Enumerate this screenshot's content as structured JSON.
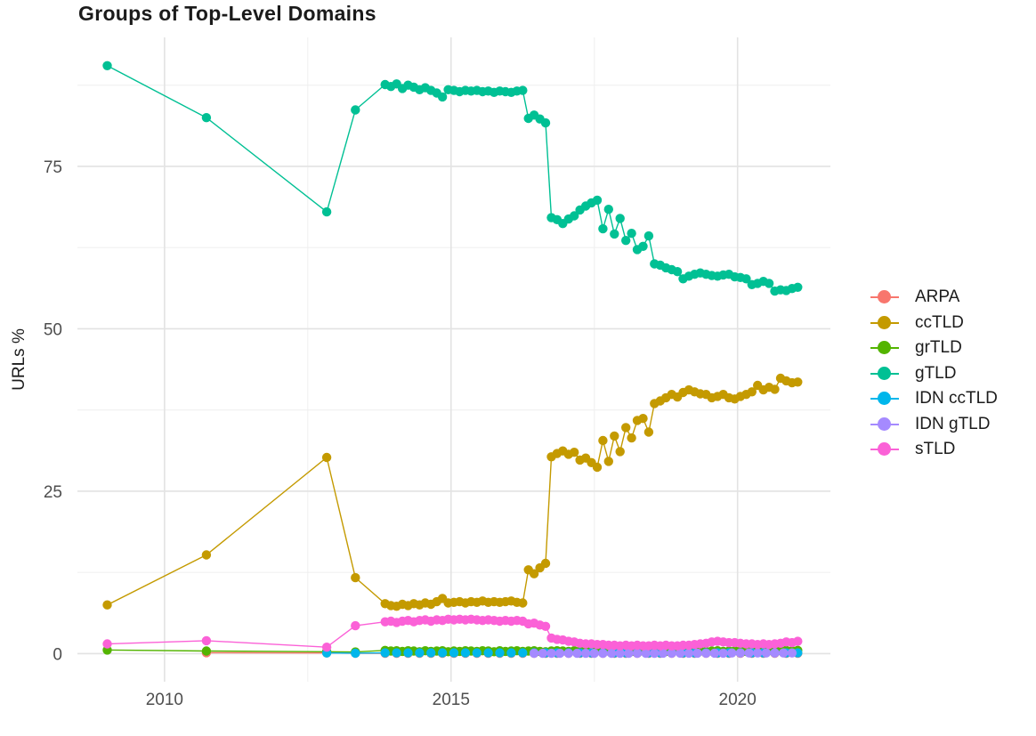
{
  "title": "Groups of Top-Level Domains",
  "y_axis_title": "URLs %",
  "colors": {
    "background": "#ffffff",
    "major_grid": "#e3e3e3",
    "minor_grid": "#f0f0f0",
    "tick_text": "#4e4e4e",
    "title_text": "#1b1b1b"
  },
  "legend": {
    "items": [
      {
        "label": "ARPA",
        "color": "#F8766D"
      },
      {
        "label": "ccTLD",
        "color": "#C49A00"
      },
      {
        "label": "grTLD",
        "color": "#53B400"
      },
      {
        "label": "gTLD",
        "color": "#00C094"
      },
      {
        "label": "IDN ccTLD",
        "color": "#00B6EB"
      },
      {
        "label": "IDN gTLD",
        "color": "#A58AFF"
      },
      {
        "label": "sTLD",
        "color": "#FB61D7"
      }
    ]
  },
  "chart_data": {
    "type": "line",
    "title": "Groups of Top-Level Domains",
    "xlabel": "",
    "ylabel": "URLs %",
    "grid": true,
    "legend_position": "right",
    "x_domain": [
      2008.48,
      2021.62
    ],
    "y_domain": [
      -4.32,
      94.86
    ],
    "x_ticks": [
      {
        "value": 2010,
        "label": "2010"
      },
      {
        "value": 2015,
        "label": "2015"
      },
      {
        "value": 2020,
        "label": "2020"
      }
    ],
    "x_minor": [
      2012.5,
      2017.5
    ],
    "y_ticks": [
      {
        "value": 0,
        "label": "0"
      },
      {
        "value": 25,
        "label": "25"
      },
      {
        "value": 50,
        "label": "50"
      },
      {
        "value": 75,
        "label": "75"
      }
    ],
    "y_minor": [
      12.5,
      37.5,
      62.5,
      87.5
    ],
    "series": [
      {
        "name": "ARPA",
        "color": "#F8766D",
        "early": [
          [
            2010.73,
            0.15
          ],
          [
            2012.83,
            0.1
          ],
          [
            2013.33,
            0.06
          ]
        ],
        "dense_start": 2013.85,
        "dense_step": 0.2,
        "dense_values": [
          0.05,
          0.05,
          0.05,
          0.05,
          0.05,
          0.05,
          0.05,
          0.05,
          0.05,
          0.05,
          0.05,
          0.05,
          0.05,
          0.05,
          0.05,
          0.05,
          0.05,
          0.05,
          0.05,
          0.05,
          0.05,
          0.05,
          0.05,
          0.05,
          0.05,
          0.05,
          0.05,
          0.05,
          0.05,
          0.05,
          0.05,
          0.05,
          0.05,
          0.05,
          0.05,
          0.05,
          0.05
        ]
      },
      {
        "name": "ccTLD",
        "color": "#C49A00",
        "early": [
          [
            2009.0,
            7.5
          ],
          [
            2010.73,
            15.2
          ],
          [
            2012.83,
            30.2
          ],
          [
            2013.33,
            11.7
          ]
        ],
        "dense_start": 2013.85,
        "dense_step": 0.1,
        "dense_values": [
          7.7,
          7.4,
          7.3,
          7.6,
          7.4,
          7.7,
          7.5,
          7.8,
          7.6,
          8.0,
          8.5,
          7.8,
          7.9,
          8.0,
          7.8,
          8.0,
          7.9,
          8.1,
          7.9,
          8.0,
          7.9,
          8.0,
          8.1,
          7.9,
          7.8,
          12.9,
          12.3,
          13.2,
          13.9,
          30.3,
          30.8,
          31.2,
          30.7,
          31.0,
          29.8,
          30.1,
          29.4,
          28.7,
          32.8,
          29.6,
          33.5,
          31.1,
          34.8,
          33.2,
          35.9,
          36.2,
          34.1,
          38.5,
          38.9,
          39.4,
          39.9,
          39.5,
          40.2,
          40.6,
          40.3,
          40.0,
          39.9,
          39.4,
          39.6,
          39.9,
          39.4,
          39.2,
          39.6,
          39.9,
          40.3,
          41.3,
          40.6,
          41.0,
          40.7,
          42.4,
          42.0,
          41.7,
          41.8
        ]
      },
      {
        "name": "grTLD",
        "color": "#53B400",
        "early": [
          [
            2009.0,
            0.55
          ],
          [
            2010.73,
            0.4
          ],
          [
            2012.83,
            0.3
          ],
          [
            2013.33,
            0.25
          ]
        ],
        "dense_start": 2013.85,
        "dense_step": 0.1,
        "dense_values": [
          0.5,
          0.4,
          0.45,
          0.35,
          0.45,
          0.4,
          0.3,
          0.45,
          0.35,
          0.4,
          0.45,
          0.3,
          0.4,
          0.35,
          0.45,
          0.4,
          0.35,
          0.45,
          0.4,
          0.3,
          0.45,
          0.35,
          0.4,
          0.45,
          0.35,
          0.4,
          0.45,
          0.35,
          0.3,
          0.4,
          0.45,
          0.4,
          0.35,
          0.45,
          0.4,
          0.35,
          0.4,
          0.45,
          0.35,
          0.4,
          0.3,
          0.45,
          0.4,
          0.35,
          0.45,
          0.4,
          0.35,
          0.4,
          0.45,
          0.35,
          0.4,
          0.45,
          0.4,
          0.35,
          0.45,
          0.4,
          0.35,
          0.4,
          0.45,
          0.35,
          0.4,
          0.45,
          0.4,
          0.35,
          0.45,
          0.4,
          0.5,
          0.45,
          0.4,
          0.45,
          0.5,
          0.45,
          0.5
        ]
      },
      {
        "name": "gTLD",
        "color": "#00C094",
        "early": [
          [
            2009.0,
            90.5
          ],
          [
            2010.73,
            82.5
          ],
          [
            2012.83,
            68.0
          ],
          [
            2013.33,
            83.7
          ]
        ],
        "dense_start": 2013.85,
        "dense_step": 0.1,
        "dense_values": [
          87.6,
          87.3,
          87.7,
          87.0,
          87.5,
          87.2,
          86.8,
          87.1,
          86.7,
          86.3,
          85.7,
          86.8,
          86.7,
          86.5,
          86.7,
          86.6,
          86.7,
          86.5,
          86.6,
          86.4,
          86.6,
          86.5,
          86.4,
          86.6,
          86.7,
          82.4,
          82.9,
          82.3,
          81.7,
          67.1,
          66.8,
          66.2,
          66.9,
          67.4,
          68.3,
          68.9,
          69.4,
          69.8,
          65.4,
          68.4,
          64.6,
          67.0,
          63.6,
          64.7,
          62.2,
          62.7,
          64.3,
          60.0,
          59.8,
          59.4,
          59.1,
          58.8,
          57.7,
          58.1,
          58.4,
          58.6,
          58.4,
          58.2,
          58.1,
          58.3,
          58.4,
          58.0,
          57.9,
          57.7,
          56.8,
          57.0,
          57.3,
          57.0,
          55.8,
          56.0,
          55.9,
          56.2,
          56.4
        ]
      },
      {
        "name": "IDN ccTLD",
        "color": "#00B6EB",
        "early": [
          [
            2012.83,
            0.1
          ],
          [
            2013.33,
            0.08
          ]
        ],
        "dense_start": 2013.85,
        "dense_step": 0.2,
        "dense_values": [
          0.12,
          0.12,
          0.12,
          0.12,
          0.12,
          0.12,
          0.12,
          0.12,
          0.12,
          0.12,
          0.12,
          0.12,
          0.12,
          0.12,
          0.12,
          0.12,
          0.12,
          0.12,
          0.12,
          0.12,
          0.12,
          0.12,
          0.12,
          0.12,
          0.12,
          0.12,
          0.12,
          0.12,
          0.12,
          0.12,
          0.12,
          0.12,
          0.12,
          0.12,
          0.12,
          0.12,
          0.12
        ]
      },
      {
        "name": "IDN gTLD",
        "color": "#A58AFF",
        "early": [],
        "dense_start": 2016.45,
        "dense_step": 0.15,
        "dense_values": [
          0.05,
          0.05,
          0.05,
          0.05,
          0.05,
          0.05,
          0.05,
          0.05,
          0.05,
          0.05,
          0.05,
          0.05,
          0.05,
          0.05,
          0.05,
          0.08,
          0.08,
          0.08,
          0.08,
          0.08,
          0.08,
          0.08,
          0.08,
          0.1,
          0.1,
          0.1,
          0.1,
          0.1,
          0.1,
          0.1,
          0.1
        ]
      },
      {
        "name": "sTLD",
        "color": "#FB61D7",
        "early": [
          [
            2009.0,
            1.5
          ],
          [
            2010.73,
            2.0
          ],
          [
            2012.83,
            1.0
          ],
          [
            2013.33,
            4.3
          ]
        ],
        "dense_start": 2013.85,
        "dense_step": 0.1,
        "dense_values": [
          4.9,
          5.0,
          4.8,
          5.0,
          5.1,
          4.9,
          5.1,
          5.2,
          5.0,
          5.2,
          5.1,
          5.3,
          5.2,
          5.3,
          5.2,
          5.3,
          5.2,
          5.1,
          5.2,
          5.1,
          5.0,
          5.1,
          5.0,
          5.1,
          5.0,
          4.6,
          4.7,
          4.4,
          4.2,
          2.4,
          2.2,
          2.1,
          1.9,
          1.8,
          1.6,
          1.5,
          1.5,
          1.4,
          1.4,
          1.3,
          1.3,
          1.2,
          1.3,
          1.2,
          1.3,
          1.2,
          1.2,
          1.3,
          1.2,
          1.3,
          1.2,
          1.2,
          1.3,
          1.3,
          1.4,
          1.5,
          1.6,
          1.8,
          1.9,
          1.8,
          1.7,
          1.7,
          1.6,
          1.5,
          1.5,
          1.4,
          1.5,
          1.4,
          1.5,
          1.6,
          1.8,
          1.7,
          1.9
        ]
      }
    ]
  }
}
